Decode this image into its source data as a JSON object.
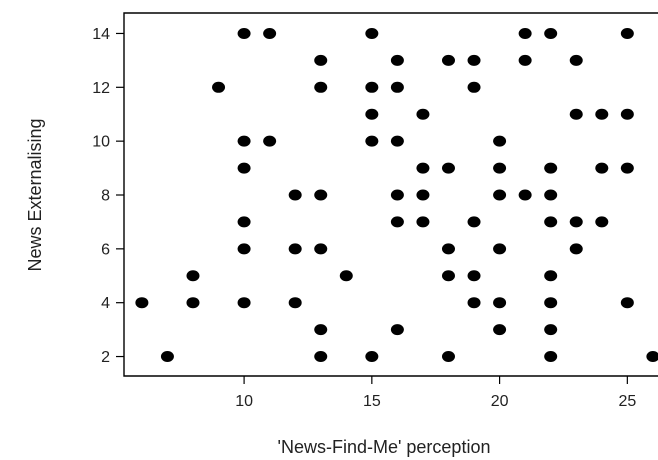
{
  "chart_data": {
    "type": "scatter",
    "xlabel": "'News-Find-Me' perception",
    "ylabel": "News Externalising",
    "xlim": [
      5.3,
      26.2
    ],
    "ylim": [
      1.5,
      14.5
    ],
    "xticks": [
      10,
      15,
      20,
      25
    ],
    "yticks": [
      2,
      4,
      6,
      8,
      10,
      12,
      14
    ],
    "grid": false,
    "marker_color": "#000000",
    "points": [
      {
        "x": 10,
        "y": 14
      },
      {
        "x": 11,
        "y": 14
      },
      {
        "x": 15,
        "y": 14
      },
      {
        "x": 21,
        "y": 14
      },
      {
        "x": 22,
        "y": 14
      },
      {
        "x": 25,
        "y": 14
      },
      {
        "x": 13,
        "y": 13
      },
      {
        "x": 16,
        "y": 13
      },
      {
        "x": 18,
        "y": 13
      },
      {
        "x": 19,
        "y": 13
      },
      {
        "x": 21,
        "y": 13
      },
      {
        "x": 23,
        "y": 13
      },
      {
        "x": 9,
        "y": 12
      },
      {
        "x": 13,
        "y": 12
      },
      {
        "x": 15,
        "y": 12
      },
      {
        "x": 16,
        "y": 12
      },
      {
        "x": 19,
        "y": 12
      },
      {
        "x": 15,
        "y": 11
      },
      {
        "x": 17,
        "y": 11
      },
      {
        "x": 23,
        "y": 11
      },
      {
        "x": 24,
        "y": 11
      },
      {
        "x": 25,
        "y": 11
      },
      {
        "x": 10,
        "y": 10
      },
      {
        "x": 11,
        "y": 10
      },
      {
        "x": 15,
        "y": 10
      },
      {
        "x": 16,
        "y": 10
      },
      {
        "x": 20,
        "y": 10
      },
      {
        "x": 10,
        "y": 9
      },
      {
        "x": 17,
        "y": 9
      },
      {
        "x": 18,
        "y": 9
      },
      {
        "x": 20,
        "y": 9
      },
      {
        "x": 22,
        "y": 9
      },
      {
        "x": 24,
        "y": 9
      },
      {
        "x": 25,
        "y": 9
      },
      {
        "x": 12,
        "y": 8
      },
      {
        "x": 13,
        "y": 8
      },
      {
        "x": 16,
        "y": 8
      },
      {
        "x": 17,
        "y": 8
      },
      {
        "x": 20,
        "y": 8
      },
      {
        "x": 21,
        "y": 8
      },
      {
        "x": 22,
        "y": 8
      },
      {
        "x": 10,
        "y": 7
      },
      {
        "x": 16,
        "y": 7
      },
      {
        "x": 17,
        "y": 7
      },
      {
        "x": 19,
        "y": 7
      },
      {
        "x": 22,
        "y": 7
      },
      {
        "x": 23,
        "y": 7
      },
      {
        "x": 24,
        "y": 7
      },
      {
        "x": 10,
        "y": 6
      },
      {
        "x": 12,
        "y": 6
      },
      {
        "x": 13,
        "y": 6
      },
      {
        "x": 18,
        "y": 6
      },
      {
        "x": 20,
        "y": 6
      },
      {
        "x": 23,
        "y": 6
      },
      {
        "x": 8,
        "y": 5
      },
      {
        "x": 14,
        "y": 5
      },
      {
        "x": 18,
        "y": 5
      },
      {
        "x": 19,
        "y": 5
      },
      {
        "x": 22,
        "y": 5
      },
      {
        "x": 6,
        "y": 4
      },
      {
        "x": 8,
        "y": 4
      },
      {
        "x": 10,
        "y": 4
      },
      {
        "x": 12,
        "y": 4
      },
      {
        "x": 19,
        "y": 4
      },
      {
        "x": 20,
        "y": 4
      },
      {
        "x": 22,
        "y": 4
      },
      {
        "x": 25,
        "y": 4
      },
      {
        "x": 13,
        "y": 3
      },
      {
        "x": 16,
        "y": 3
      },
      {
        "x": 20,
        "y": 3
      },
      {
        "x": 22,
        "y": 3
      },
      {
        "x": 7,
        "y": 2
      },
      {
        "x": 13,
        "y": 2
      },
      {
        "x": 15,
        "y": 2
      },
      {
        "x": 18,
        "y": 2
      },
      {
        "x": 22,
        "y": 2
      },
      {
        "x": 26,
        "y": 2
      }
    ]
  }
}
